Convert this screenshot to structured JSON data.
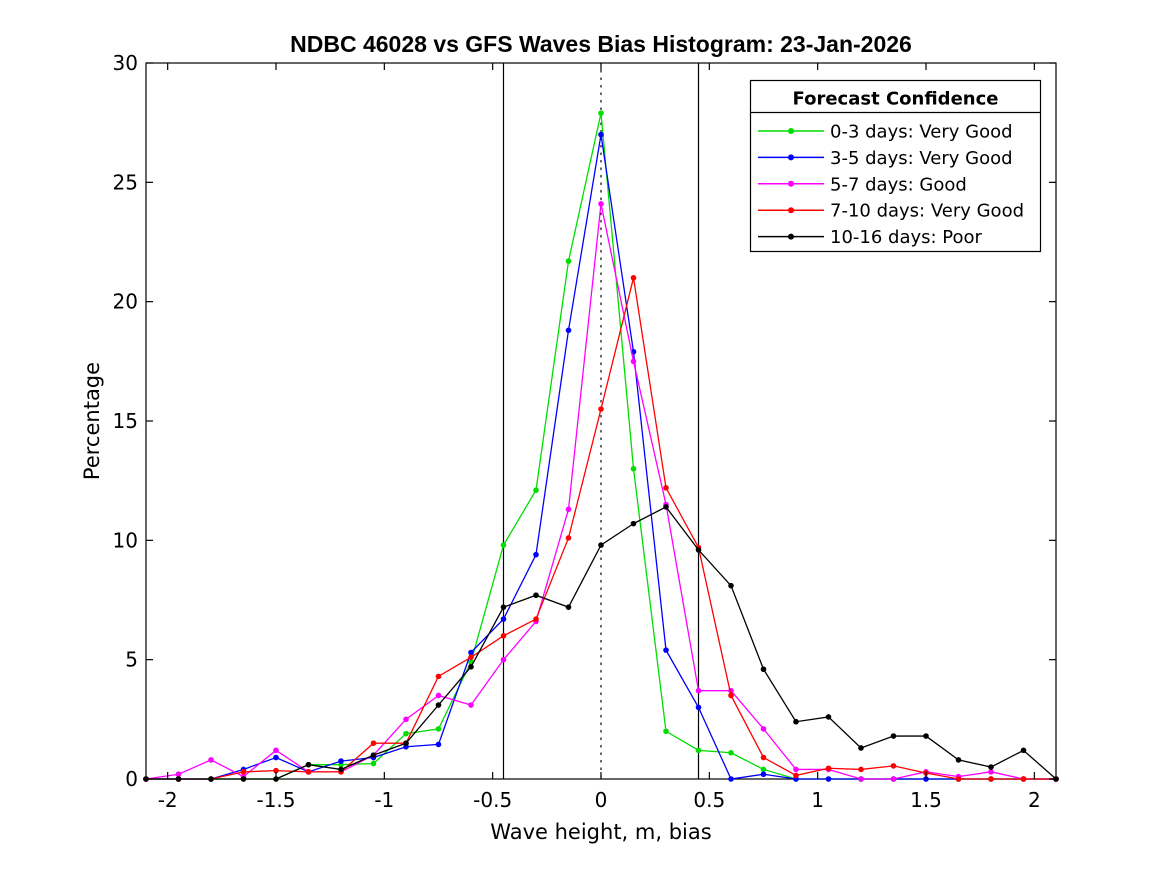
{
  "chart_data": {
    "type": "line",
    "title": "NDBC 46028 vs GFS Waves Bias Histogram: 23-Jan-2026",
    "xlabel": "Wave height, m, bias",
    "ylabel": "Percentage",
    "xlim": [
      -2.1,
      2.1
    ],
    "ylim": [
      0,
      30
    ],
    "grid": false,
    "xticks": [
      -2,
      -1.5,
      -1,
      -0.5,
      0,
      0.5,
      1,
      1.5,
      2
    ],
    "xtick_labels": [
      "-2",
      "-1.5",
      "-1",
      "-0.5",
      "0",
      "0.5",
      "1",
      "1.5",
      "2"
    ],
    "yticks": [
      0,
      5,
      10,
      15,
      20,
      25,
      30
    ],
    "ytick_labels": [
      "0",
      "5",
      "10",
      "15",
      "20",
      "25",
      "30"
    ],
    "reference_lines": [
      {
        "x": -0.45,
        "style": "solid",
        "color": "#000000"
      },
      {
        "x": 0,
        "style": "dotted",
        "color": "#000000"
      },
      {
        "x": 0.45,
        "style": "solid",
        "color": "#000000"
      }
    ],
    "legend": {
      "title": "Forecast Confidence",
      "position": "top-right"
    },
    "x": [
      -2.1,
      -1.95,
      -1.8,
      -1.65,
      -1.5,
      -1.35,
      -1.2,
      -1.05,
      -0.9,
      -0.75,
      -0.6,
      -0.45,
      -0.3,
      -0.15,
      0,
      0.15,
      0.3,
      0.45,
      0.6,
      0.75,
      0.9,
      1.05,
      1.2,
      1.35,
      1.5,
      1.65,
      1.8,
      1.95,
      2.1
    ],
    "series": [
      {
        "name": "0-3 days: Very Good",
        "color": "#00DD00",
        "values": [
          0,
          0,
          0,
          0,
          0,
          0.6,
          0.6,
          0.65,
          1.9,
          2.1,
          4.9,
          9.8,
          12.1,
          21.7,
          27.9,
          13.0,
          2.0,
          1.2,
          1.1,
          0.4,
          0,
          0,
          0,
          0,
          0,
          0,
          0,
          0,
          0
        ]
      },
      {
        "name": "3-5 days: Very Good",
        "color": "#0000FF",
        "values": [
          0,
          0,
          0,
          0.4,
          0.9,
          0.3,
          0.75,
          0.9,
          1.35,
          1.45,
          5.3,
          6.7,
          9.4,
          18.8,
          27.0,
          17.9,
          5.4,
          3.0,
          0,
          0.2,
          0,
          0,
          0,
          0,
          0,
          0,
          0,
          0,
          0
        ]
      },
      {
        "name": "5-7 days: Good",
        "color": "#FF00FF",
        "values": [
          0,
          0.2,
          0.8,
          0.1,
          1.2,
          0.3,
          0.3,
          1.0,
          2.5,
          3.5,
          3.1,
          5.0,
          6.6,
          11.3,
          24.1,
          17.5,
          11.5,
          3.7,
          3.7,
          2.1,
          0.4,
          0.4,
          0,
          0,
          0.3,
          0.1,
          0.3,
          0,
          0
        ]
      },
      {
        "name": "7-10 days: Very Good",
        "color": "#FF0000",
        "values": [
          0,
          0,
          0,
          0.3,
          0.35,
          0.3,
          0.3,
          1.5,
          1.5,
          4.3,
          5.1,
          6.0,
          6.7,
          10.1,
          15.5,
          21.0,
          12.2,
          9.7,
          3.5,
          0.9,
          0.15,
          0.45,
          0.4,
          0.55,
          0.25,
          0,
          0,
          0,
          0
        ]
      },
      {
        "name": "10-16 days: Poor",
        "color": "#000000",
        "values": [
          0,
          0,
          0,
          0,
          0,
          0.6,
          0.4,
          1.0,
          1.5,
          3.1,
          4.7,
          7.2,
          7.7,
          7.2,
          9.8,
          10.7,
          11.4,
          9.6,
          8.1,
          4.6,
          2.4,
          2.6,
          1.3,
          1.8,
          1.8,
          0.8,
          0.5,
          1.2,
          0
        ]
      }
    ]
  }
}
